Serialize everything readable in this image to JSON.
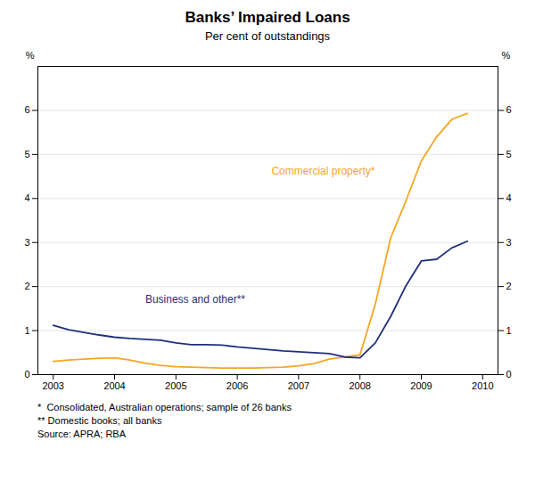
{
  "chart_data": {
    "type": "line",
    "title": "Banks’ Impaired Loans",
    "subtitle": "Per cent of outstandings",
    "ylabel": "%",
    "y2label": "%",
    "x": [
      2003.0,
      2003.25,
      2003.5,
      2003.75,
      2004.0,
      2004.25,
      2004.5,
      2004.75,
      2005.0,
      2005.25,
      2005.5,
      2005.75,
      2006.0,
      2006.25,
      2006.5,
      2006.75,
      2007.0,
      2007.25,
      2007.5,
      2007.75,
      2008.0,
      2008.25,
      2008.5,
      2008.75,
      2009.0,
      2009.25,
      2009.5,
      2009.75
    ],
    "series": [
      {
        "name": "Commercial property*",
        "color": "#f5a623",
        "values": [
          0.3,
          0.33,
          0.35,
          0.37,
          0.38,
          0.33,
          0.26,
          0.21,
          0.18,
          0.17,
          0.16,
          0.15,
          0.15,
          0.15,
          0.16,
          0.17,
          0.2,
          0.25,
          0.35,
          0.4,
          0.45,
          1.6,
          3.1,
          3.95,
          4.85,
          5.4,
          5.8,
          5.93
        ]
      },
      {
        "name": "Business and other**",
        "color": "#1f2f7a",
        "values": [
          1.12,
          1.02,
          0.96,
          0.9,
          0.85,
          0.82,
          0.8,
          0.78,
          0.72,
          0.68,
          0.68,
          0.67,
          0.63,
          0.6,
          0.57,
          0.54,
          0.52,
          0.5,
          0.48,
          0.4,
          0.38,
          0.72,
          1.32,
          2.02,
          2.58,
          2.62,
          2.88,
          3.03
        ]
      }
    ],
    "xlim": [
      2002.75,
      2010.25
    ],
    "xticks": [
      2003,
      2004,
      2005,
      2006,
      2007,
      2008,
      2009,
      2010
    ],
    "ylim": [
      0,
      7
    ],
    "yticks": [
      0,
      1,
      2,
      3,
      4,
      5,
      6
    ],
    "y2lim": [
      0,
      7
    ],
    "y2ticks": [
      0,
      1,
      2,
      3,
      4,
      5,
      6
    ],
    "grid": true,
    "annotations": [
      {
        "text": "Commercial property*",
        "x": 2007.4,
        "y": 4.55,
        "color": "#f5a623"
      },
      {
        "text": "Business and other**",
        "x": 2004.5,
        "y": 1.62,
        "color": "#1f2f7a"
      }
    ],
    "footnotes": [
      "*  Consolidated, Australian operations; sample of 26 banks",
      "** Domestic books; all banks",
      "Source: APRA; RBA"
    ]
  }
}
